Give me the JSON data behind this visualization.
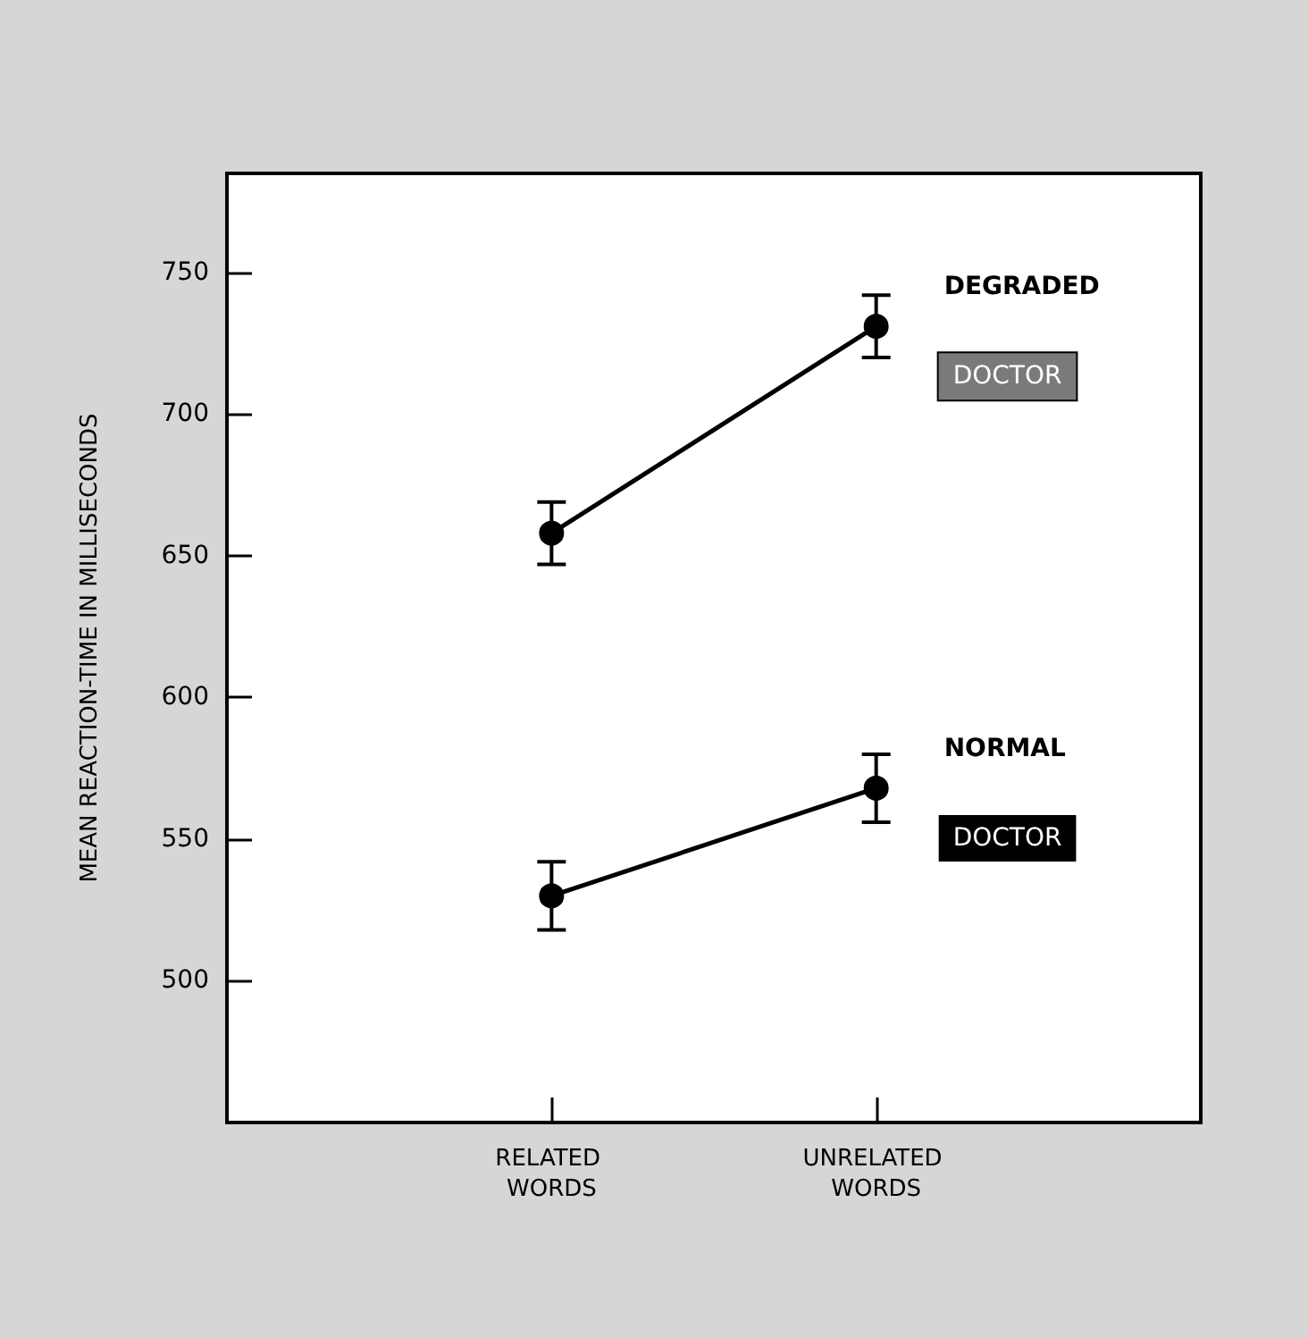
{
  "chart_data": {
    "type": "line",
    "ylabel": "MEAN REACTION-TIME IN MILLISECONDS",
    "categories": [
      null,
      "RELATED WORDS",
      "UNRELATED WORDS",
      null
    ],
    "series": [
      {
        "name": "DEGRADED",
        "color": "#000000",
        "values": [
          null,
          658,
          731,
          null
        ],
        "errors": [
          null,
          11,
          11,
          null
        ]
      },
      {
        "name": "NORMAL",
        "color": "#000000",
        "values": [
          null,
          530,
          568,
          null
        ],
        "errors": [
          null,
          12,
          12,
          null
        ]
      }
    ],
    "annotations": [
      "DOCTOR",
      "DOCTOR"
    ],
    "ylim": [
      450,
      785
    ],
    "yticks": [
      500,
      550,
      600,
      650,
      700,
      750
    ],
    "marker": "circle",
    "line_style": "solid",
    "grid": false,
    "legend": false
  }
}
